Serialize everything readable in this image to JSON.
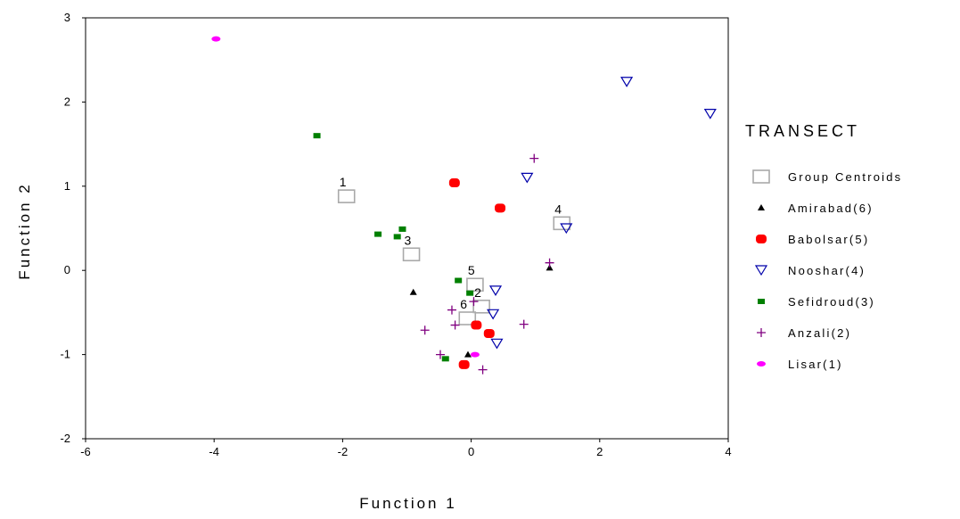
{
  "chart_data": {
    "type": "scatter",
    "title": "",
    "xlabel": "Function 1",
    "ylabel": "Function 2",
    "xlim": [
      -6,
      4
    ],
    "ylim": [
      -2,
      3
    ],
    "x_ticks": [
      "-6",
      "-4",
      "-2",
      "0",
      "2",
      "4"
    ],
    "y_ticks": [
      "-2",
      "-1",
      "0",
      "1",
      "2",
      "3"
    ],
    "grid": false,
    "legend": {
      "title": "TRANSECT",
      "position": "right",
      "entries": [
        "Group Centroids",
        "Amirabad(6)",
        "Babolsar(5)",
        "Nooshar(4)",
        "Sefidroud(3)",
        "Anzali(2)",
        "Lisar(1)"
      ]
    },
    "series": [
      {
        "name": "Amirabad(6)",
        "marker": "triangle-up",
        "color": "#000000",
        "points": [
          [
            -0.9,
            -0.26
          ],
          [
            -0.05,
            -1.0
          ],
          [
            1.22,
            0.03
          ]
        ]
      },
      {
        "name": "Babolsar(5)",
        "marker": "rounded-square",
        "color": "#ff0000",
        "points": [
          [
            -0.26,
            1.04
          ],
          [
            0.45,
            0.74
          ],
          [
            0.08,
            -0.65
          ],
          [
            0.28,
            -0.75
          ],
          [
            -0.11,
            -1.12
          ]
        ]
      },
      {
        "name": "Nooshar(4)",
        "marker": "triangle-down",
        "color": "#0000aa",
        "points": [
          [
            2.42,
            2.24
          ],
          [
            3.72,
            1.86
          ],
          [
            0.87,
            1.1
          ],
          [
            1.48,
            0.5
          ],
          [
            0.38,
            -0.24
          ],
          [
            0.34,
            -0.52
          ],
          [
            0.4,
            -0.87
          ]
        ]
      },
      {
        "name": "Sefidroud(3)",
        "marker": "square",
        "color": "#008000",
        "points": [
          [
            -2.4,
            1.6
          ],
          [
            -1.45,
            0.43
          ],
          [
            -1.15,
            0.4
          ],
          [
            -1.07,
            0.49
          ],
          [
            -0.2,
            -0.12
          ],
          [
            -0.02,
            -0.27
          ],
          [
            -0.4,
            -1.05
          ]
        ]
      },
      {
        "name": "Anzali(2)",
        "marker": "plus",
        "color": "#800080",
        "points": [
          [
            0.98,
            1.33
          ],
          [
            1.22,
            0.09
          ],
          [
            -0.3,
            -0.47
          ],
          [
            0.04,
            -0.37
          ],
          [
            -0.72,
            -0.71
          ],
          [
            -0.25,
            -0.65
          ],
          [
            0.82,
            -0.64
          ],
          [
            -0.48,
            -1.0
          ],
          [
            0.18,
            -1.18
          ]
        ]
      },
      {
        "name": "Lisar(1)",
        "marker": "diamond",
        "color": "#ff00ff",
        "points": [
          [
            -3.97,
            2.75
          ],
          [
            0.06,
            -1.0
          ]
        ]
      }
    ],
    "centroids": [
      {
        "label": "1",
        "x": -1.94,
        "y": 0.88
      },
      {
        "label": "4",
        "x": 1.41,
        "y": 0.56
      },
      {
        "label": "3",
        "x": -0.93,
        "y": 0.19
      },
      {
        "label": "5",
        "x": 0.06,
        "y": -0.17
      },
      {
        "label": "2",
        "x": 0.16,
        "y": -0.43
      },
      {
        "label": "6",
        "x": -0.06,
        "y": -0.57
      }
    ]
  }
}
